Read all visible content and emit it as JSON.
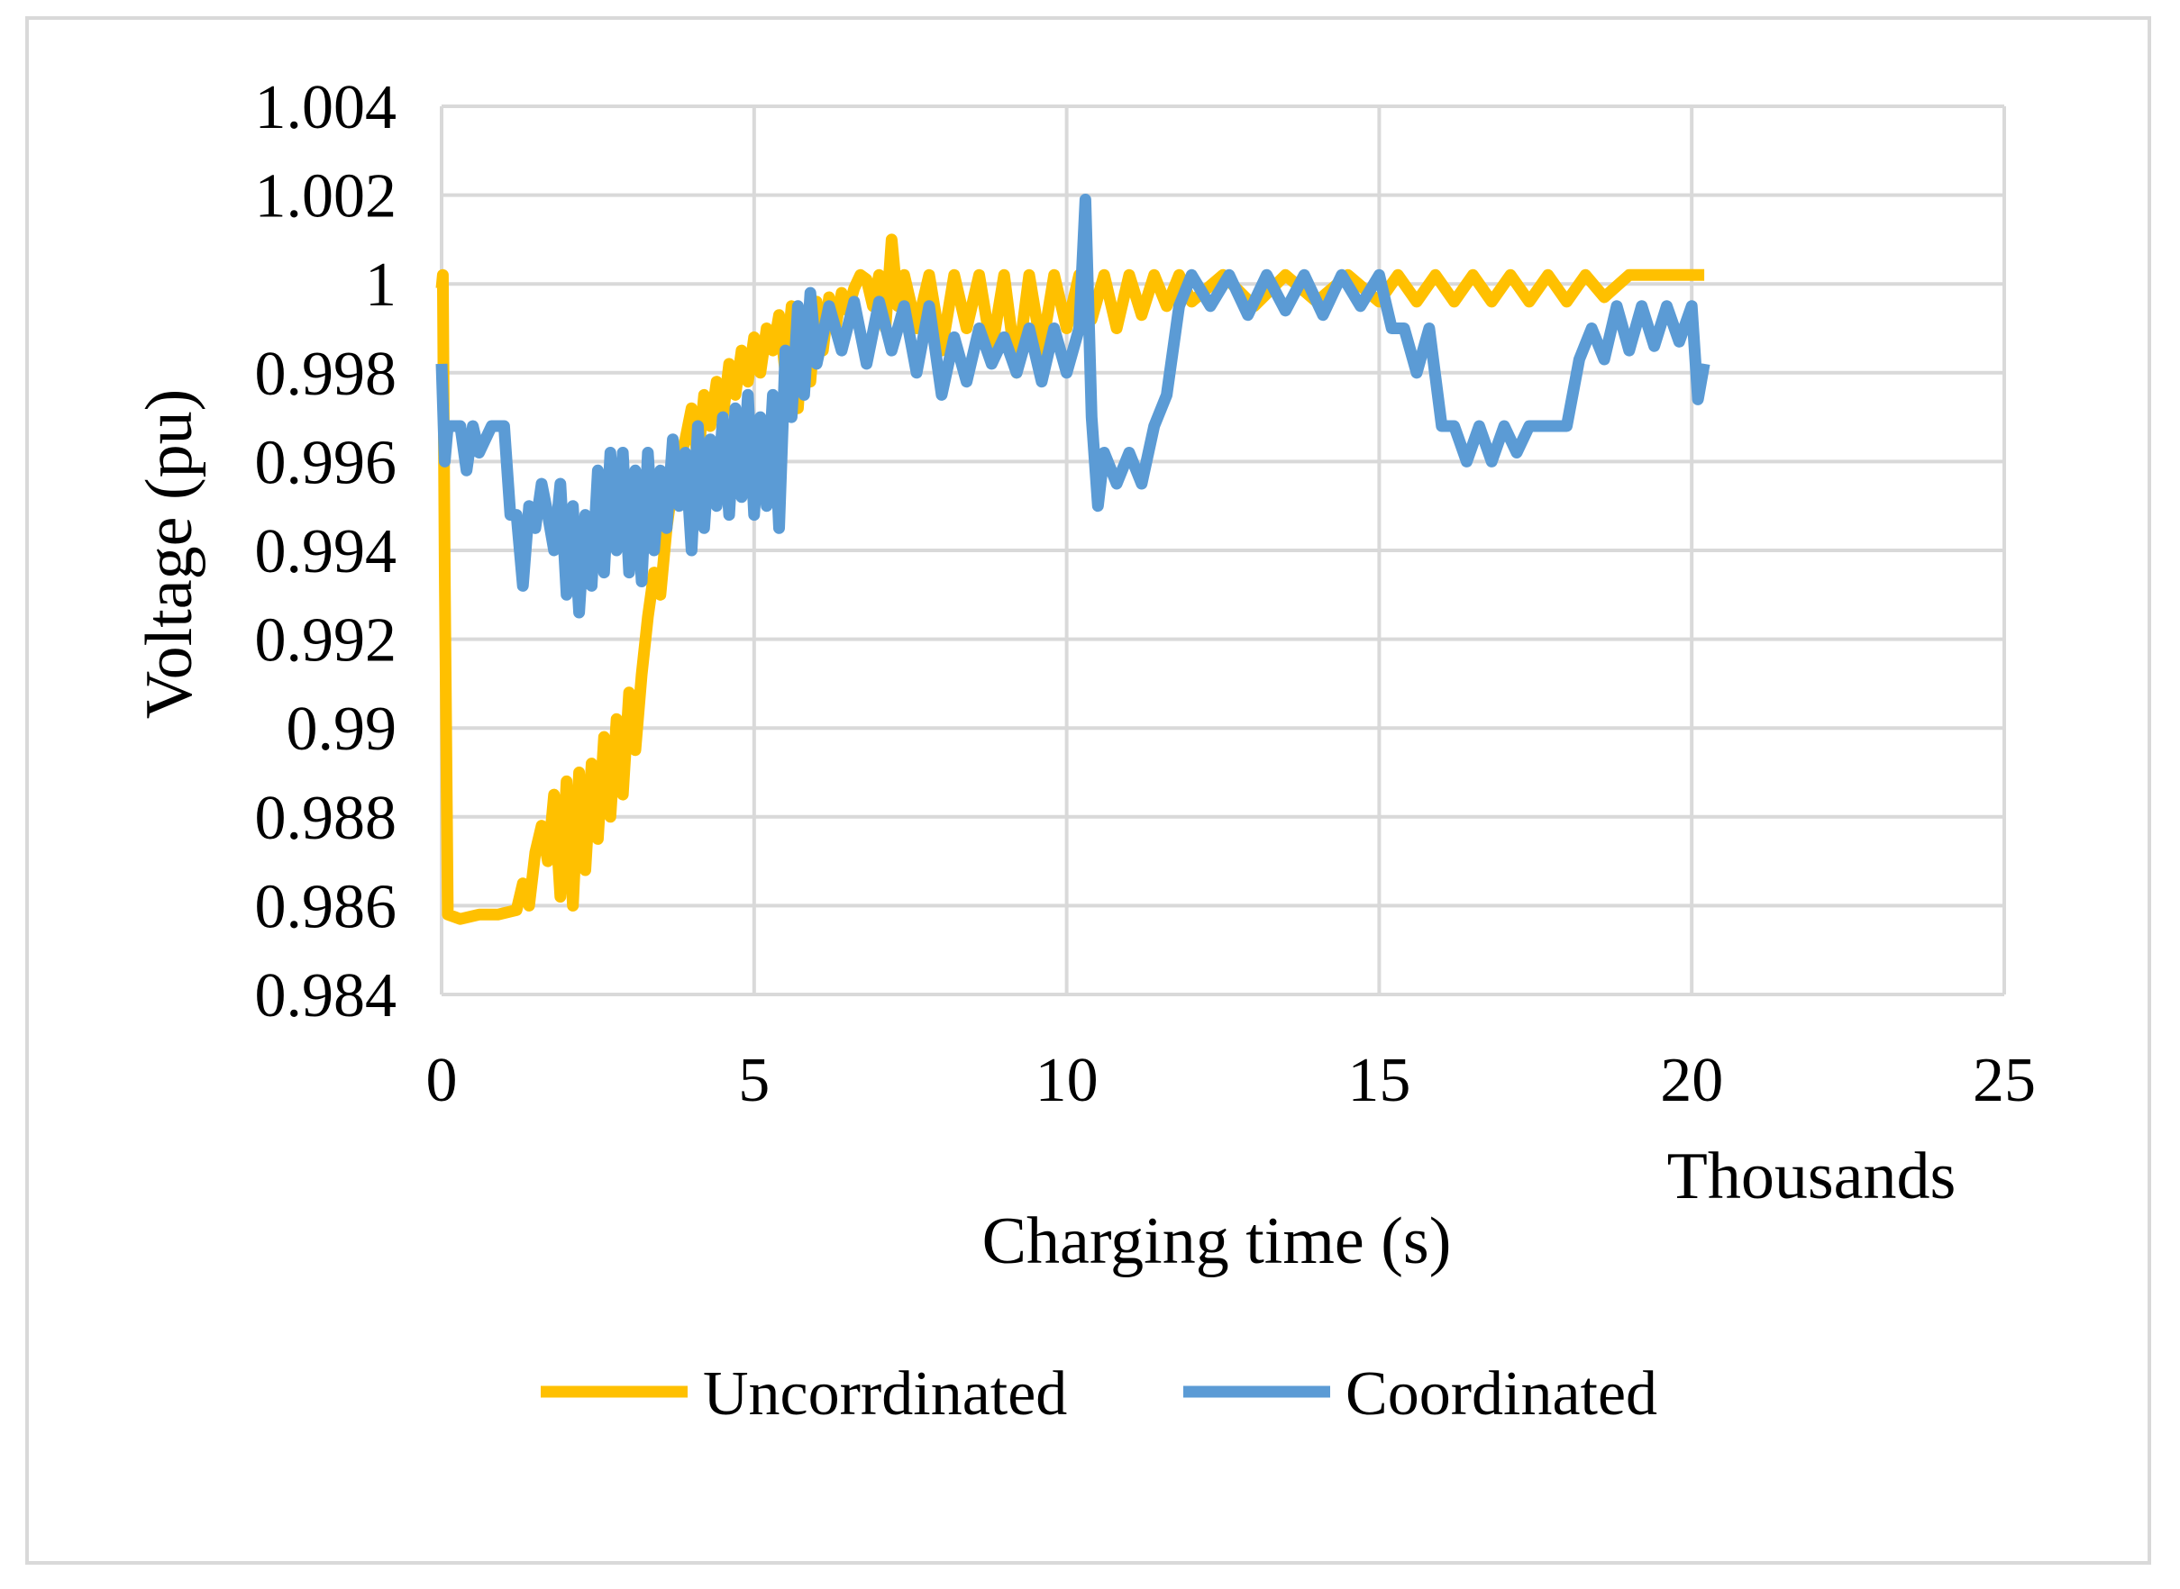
{
  "chart_data": {
    "type": "line",
    "title": "",
    "xlabel": "Charging time (s)",
    "ylabel": "Voltage (pu)",
    "x_units_label": "Thousands",
    "xlim": [
      0,
      25
    ],
    "ylim": [
      0.984,
      1.004
    ],
    "x_ticks": [
      "0",
      "5",
      "10",
      "15",
      "20",
      "25"
    ],
    "x_tick_values": [
      0,
      5,
      10,
      15,
      20,
      25
    ],
    "y_ticks": [
      "1.004",
      "1.002",
      "1",
      "0.998",
      "0.996",
      "0.994",
      "0.992",
      "0.99",
      "0.988",
      "0.986",
      "0.984"
    ],
    "y_tick_values": [
      1.004,
      1.002,
      1.0,
      0.998,
      0.996,
      0.994,
      0.992,
      0.99,
      0.988,
      0.986,
      0.984
    ],
    "grid": true,
    "legend_position": "bottom",
    "series": [
      {
        "name": "Uncorrdinated",
        "color": "#FFC000",
        "x": [
          0,
          0.02,
          0.05,
          0.1,
          0.3,
          0.6,
          0.9,
          1.2,
          1.3,
          1.4,
          1.5,
          1.6,
          1.7,
          1.8,
          1.9,
          2.0,
          2.1,
          2.2,
          2.3,
          2.4,
          2.5,
          2.6,
          2.7,
          2.8,
          2.9,
          3.0,
          3.1,
          3.2,
          3.3,
          3.4,
          3.5,
          3.6,
          3.7,
          3.8,
          3.9,
          4.0,
          4.1,
          4.2,
          4.3,
          4.4,
          4.5,
          4.6,
          4.7,
          4.8,
          4.9,
          5.0,
          5.1,
          5.2,
          5.3,
          5.4,
          5.5,
          5.6,
          5.7,
          5.8,
          5.9,
          6.0,
          6.1,
          6.2,
          6.3,
          6.4,
          6.5,
          6.6,
          6.7,
          6.8,
          6.9,
          7.0,
          7.1,
          7.2,
          7.3,
          7.4,
          7.6,
          7.8,
          8.0,
          8.2,
          8.4,
          8.6,
          8.8,
          9.0,
          9.2,
          9.4,
          9.6,
          9.8,
          10.0,
          10.2,
          10.4,
          10.6,
          10.8,
          11.0,
          11.2,
          11.4,
          11.6,
          11.8,
          12.0,
          12.5,
          13.0,
          13.5,
          14.0,
          14.5,
          15.0,
          15.3,
          15.6,
          15.9,
          16.2,
          16.5,
          16.8,
          17.1,
          17.4,
          17.7,
          18.0,
          18.3,
          18.6,
          19.0,
          19.5,
          20.0,
          20.2
        ],
        "y": [
          0.9999,
          1.0002,
          0.9935,
          0.9858,
          0.9857,
          0.9858,
          0.9858,
          0.9859,
          0.9865,
          0.986,
          0.9872,
          0.9878,
          0.987,
          0.9885,
          0.9862,
          0.9888,
          0.986,
          0.989,
          0.9868,
          0.9892,
          0.9875,
          0.9898,
          0.988,
          0.9902,
          0.9885,
          0.9908,
          0.9895,
          0.9912,
          0.9925,
          0.9935,
          0.993,
          0.9945,
          0.9955,
          0.996,
          0.9965,
          0.9972,
          0.996,
          0.9975,
          0.9968,
          0.9978,
          0.997,
          0.9982,
          0.9975,
          0.9985,
          0.9978,
          0.9988,
          0.998,
          0.999,
          0.9985,
          0.9993,
          0.998,
          0.9995,
          0.9972,
          0.9993,
          0.9978,
          0.9996,
          0.9985,
          0.9997,
          0.999,
          0.9998,
          0.9994,
          0.9999,
          1.0002,
          1.0001,
          0.9995,
          1.0002,
          0.999,
          1.001,
          0.9995,
          1.0002,
          0.999,
          1.0002,
          0.9985,
          1.0002,
          0.999,
          1.0002,
          0.9985,
          1.0002,
          0.998,
          1.0002,
          0.9985,
          1.0002,
          0.999,
          1.0002,
          0.9992,
          1.0002,
          0.999,
          1.0002,
          0.9993,
          1.0002,
          0.9995,
          1.0002,
          0.9996,
          1.0002,
          0.9995,
          1.0002,
          0.9996,
          1.0002,
          0.9996,
          1.0002,
          0.9996,
          1.0002,
          0.9996,
          1.0002,
          0.9996,
          1.0002,
          0.9996,
          1.0002,
          0.9996,
          1.0002,
          0.9997,
          1.0002,
          1.0002,
          1.0002,
          1.0002
        ]
      },
      {
        "name": "Coordinated",
        "color": "#5B9BD5",
        "x": [
          0,
          0.05,
          0.1,
          0.3,
          0.4,
          0.5,
          0.6,
          0.8,
          1.0,
          1.1,
          1.2,
          1.3,
          1.4,
          1.5,
          1.6,
          1.7,
          1.8,
          1.9,
          2.0,
          2.1,
          2.2,
          2.3,
          2.4,
          2.5,
          2.6,
          2.7,
          2.8,
          2.9,
          3.0,
          3.1,
          3.2,
          3.3,
          3.4,
          3.5,
          3.6,
          3.7,
          3.8,
          3.9,
          4.0,
          4.1,
          4.2,
          4.3,
          4.4,
          4.5,
          4.6,
          4.7,
          4.8,
          4.9,
          5.0,
          5.1,
          5.2,
          5.3,
          5.4,
          5.5,
          5.6,
          5.7,
          5.8,
          5.9,
          6.0,
          6.2,
          6.4,
          6.6,
          6.8,
          7.0,
          7.2,
          7.4,
          7.6,
          7.8,
          8.0,
          8.2,
          8.4,
          8.6,
          8.8,
          9.0,
          9.2,
          9.4,
          9.6,
          9.8,
          10.0,
          10.2,
          10.3,
          10.4,
          10.5,
          10.6,
          10.8,
          11.0,
          11.2,
          11.4,
          11.6,
          11.8,
          12.0,
          12.3,
          12.6,
          12.9,
          13.2,
          13.5,
          13.8,
          14.1,
          14.4,
          14.7,
          15.0,
          15.2,
          15.4,
          15.6,
          15.8,
          16.0,
          16.2,
          16.4,
          16.6,
          16.8,
          17.0,
          17.2,
          17.4,
          17.6,
          17.8,
          18.0,
          18.2,
          18.4,
          18.6,
          18.8,
          19.0,
          19.2,
          19.4,
          19.6,
          19.8,
          20.0,
          20.1,
          20.2
        ],
        "y": [
          0.9982,
          0.996,
          0.9968,
          0.9968,
          0.9958,
          0.9968,
          0.9962,
          0.9968,
          0.9968,
          0.9948,
          0.9948,
          0.9932,
          0.995,
          0.9945,
          0.9955,
          0.9948,
          0.994,
          0.9955,
          0.993,
          0.995,
          0.9926,
          0.9948,
          0.9932,
          0.9958,
          0.9935,
          0.9962,
          0.994,
          0.9962,
          0.9935,
          0.9958,
          0.9933,
          0.9962,
          0.994,
          0.9958,
          0.9945,
          0.9965,
          0.995,
          0.9962,
          0.994,
          0.9968,
          0.9945,
          0.9965,
          0.995,
          0.997,
          0.9948,
          0.9972,
          0.9952,
          0.9975,
          0.9948,
          0.997,
          0.995,
          0.9975,
          0.9945,
          0.9985,
          0.997,
          0.9995,
          0.9975,
          0.9998,
          0.9982,
          0.9995,
          0.9985,
          0.9996,
          0.9982,
          0.9996,
          0.9985,
          0.9995,
          0.998,
          0.9995,
          0.9975,
          0.9988,
          0.9978,
          0.999,
          0.9982,
          0.9988,
          0.998,
          0.999,
          0.9978,
          0.999,
          0.998,
          0.999,
          1.0019,
          0.997,
          0.995,
          0.9962,
          0.9955,
          0.9962,
          0.9955,
          0.9968,
          0.9975,
          0.9995,
          1.0002,
          0.9995,
          1.0002,
          0.9993,
          1.0002,
          0.9994,
          1.0002,
          0.9993,
          1.0002,
          0.9995,
          1.0002,
          0.999,
          0.999,
          0.998,
          0.999,
          0.9968,
          0.9968,
          0.996,
          0.9968,
          0.996,
          0.9968,
          0.9962,
          0.9968,
          0.9968,
          0.9968,
          0.9968,
          0.9983,
          0.999,
          0.9983,
          0.9995,
          0.9985,
          0.9995,
          0.9986,
          0.9995,
          0.9987,
          0.9995,
          0.9974,
          0.9982
        ]
      }
    ]
  }
}
